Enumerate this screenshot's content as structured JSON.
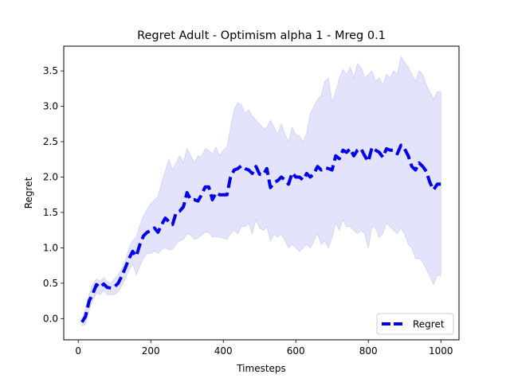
{
  "chart_data": {
    "type": "line",
    "title": "Regret Adult - Optimism alpha 1 - Mreg 0.1",
    "xlabel": "Timesteps",
    "ylabel": "Regret",
    "xlim": [
      -40,
      1050
    ],
    "ylim": [
      -0.3,
      3.85
    ],
    "xticks": [
      0,
      200,
      400,
      600,
      800,
      1000
    ],
    "xtick_labels": [
      "0",
      "200",
      "400",
      "600",
      "800",
      "1000"
    ],
    "yticks": [
      0.0,
      0.5,
      1.0,
      1.5,
      2.0,
      2.5,
      3.0,
      3.5
    ],
    "ytick_labels": [
      "0.0",
      "0.5",
      "1.0",
      "1.5",
      "2.0",
      "2.5",
      "3.0",
      "3.5"
    ],
    "grid": false,
    "legend": {
      "position": "lower-right",
      "entries": [
        "Regret"
      ]
    },
    "colors": {
      "line": "#0000ee",
      "band": "#e3e3fb",
      "band_edge": "#cfcff7"
    },
    "series": [
      {
        "name": "Regret",
        "style": "dashed",
        "x": [
          10,
          20,
          30,
          40,
          50,
          60,
          70,
          80,
          90,
          100,
          110,
          120,
          130,
          140,
          150,
          160,
          170,
          180,
          190,
          200,
          210,
          220,
          230,
          240,
          250,
          260,
          270,
          280,
          290,
          300,
          310,
          320,
          330,
          340,
          350,
          360,
          370,
          380,
          390,
          400,
          410,
          420,
          430,
          440,
          450,
          460,
          470,
          480,
          490,
          500,
          510,
          520,
          530,
          540,
          550,
          560,
          570,
          580,
          590,
          600,
          610,
          620,
          630,
          640,
          650,
          660,
          670,
          680,
          690,
          700,
          710,
          720,
          730,
          740,
          750,
          760,
          770,
          780,
          790,
          800,
          810,
          820,
          830,
          840,
          850,
          860,
          870,
          880,
          890,
          900,
          910,
          920,
          930,
          940,
          950,
          960,
          970,
          980,
          990,
          1000
        ],
        "y": [
          -0.05,
          0.03,
          0.25,
          0.35,
          0.48,
          0.44,
          0.49,
          0.44,
          0.43,
          0.45,
          0.5,
          0.6,
          0.72,
          0.85,
          0.95,
          0.88,
          1.05,
          1.17,
          1.22,
          1.24,
          1.28,
          1.22,
          1.33,
          1.42,
          1.37,
          1.33,
          1.5,
          1.52,
          1.58,
          1.78,
          1.68,
          1.68,
          1.66,
          1.75,
          1.86,
          1.86,
          1.68,
          1.78,
          1.75,
          1.75,
          1.75,
          2.0,
          2.1,
          2.12,
          2.16,
          2.12,
          2.1,
          2.05,
          2.15,
          2.04,
          2.03,
          2.12,
          1.85,
          1.92,
          1.95,
          2.0,
          1.96,
          1.9,
          2.06,
          2.0,
          2.0,
          1.96,
          2.05,
          2.0,
          2.05,
          2.15,
          2.1,
          2.13,
          2.12,
          2.1,
          2.3,
          2.26,
          2.38,
          2.35,
          2.4,
          2.3,
          2.38,
          2.4,
          2.3,
          2.22,
          2.42,
          2.38,
          2.35,
          2.28,
          2.4,
          2.38,
          2.38,
          2.33,
          2.45,
          2.4,
          2.3,
          2.15,
          2.1,
          2.2,
          2.15,
          2.08,
          1.92,
          1.82,
          1.9,
          1.9
        ],
        "upper": [
          -0.02,
          0.15,
          0.35,
          0.48,
          0.56,
          0.53,
          0.58,
          0.52,
          0.5,
          0.56,
          0.62,
          0.7,
          0.82,
          1.0,
          1.1,
          1.15,
          1.32,
          1.45,
          1.55,
          1.62,
          1.68,
          1.72,
          1.92,
          2.08,
          2.25,
          2.1,
          2.2,
          2.3,
          2.2,
          2.4,
          2.3,
          2.2,
          2.3,
          2.28,
          2.4,
          2.38,
          2.32,
          2.42,
          2.3,
          2.38,
          2.42,
          2.7,
          2.95,
          3.05,
          3.02,
          2.9,
          2.95,
          2.86,
          2.8,
          2.75,
          2.68,
          2.7,
          2.8,
          2.7,
          2.6,
          2.75,
          2.6,
          2.5,
          2.7,
          2.6,
          2.58,
          2.5,
          2.62,
          2.9,
          3.0,
          3.1,
          3.15,
          3.35,
          3.4,
          3.05,
          3.2,
          3.4,
          3.52,
          3.45,
          3.55,
          3.4,
          3.6,
          3.55,
          3.4,
          3.45,
          3.5,
          3.35,
          3.4,
          3.3,
          3.45,
          3.4,
          3.5,
          3.45,
          3.7,
          3.62,
          3.55,
          3.45,
          3.35,
          3.5,
          3.45,
          3.3,
          3.2,
          3.1,
          3.2,
          3.2
        ],
        "lower": [
          -0.1,
          -0.08,
          0.12,
          0.26,
          0.36,
          0.34,
          0.4,
          0.34,
          0.34,
          0.34,
          0.38,
          0.46,
          0.56,
          0.68,
          0.78,
          0.62,
          0.74,
          0.86,
          0.92,
          0.92,
          0.96,
          0.92,
          0.98,
          1.0,
          0.97,
          0.98,
          1.06,
          1.1,
          1.12,
          1.2,
          1.18,
          1.12,
          1.14,
          1.18,
          1.22,
          1.22,
          1.15,
          1.16,
          1.15,
          1.14,
          1.12,
          1.2,
          1.25,
          1.2,
          1.3,
          1.3,
          1.35,
          1.2,
          1.4,
          1.28,
          1.25,
          1.3,
          1.1,
          1.2,
          1.15,
          1.2,
          1.1,
          1.0,
          1.05,
          1.0,
          0.95,
          1.0,
          1.05,
          1.0,
          1.1,
          1.2,
          1.05,
          1.1,
          1.0,
          1.15,
          1.35,
          1.25,
          1.4,
          1.3,
          1.3,
          1.25,
          1.2,
          1.25,
          1.2,
          1.0,
          1.3,
          1.28,
          1.15,
          1.2,
          1.35,
          1.3,
          1.25,
          1.2,
          1.28,
          1.2,
          1.05,
          1.0,
          0.85,
          0.85,
          0.8,
          0.7,
          0.6,
          0.48,
          0.62,
          0.6
        ]
      }
    ]
  }
}
